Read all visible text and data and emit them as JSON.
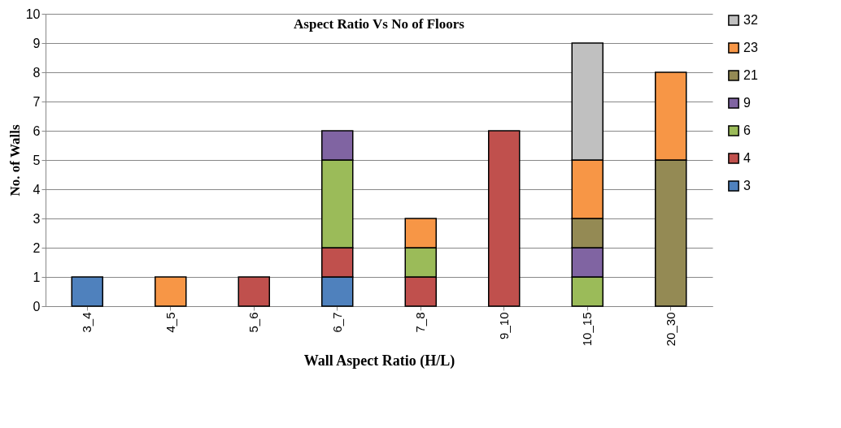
{
  "chart_data": {
    "type": "bar",
    "stacked": true,
    "title": "Aspect Ratio Vs No of Floors",
    "xlabel": "Wall  Aspect Ratio (H/L)",
    "ylabel": "No. of Walls",
    "categories": [
      "3_4",
      "4_5",
      "5_6",
      "6_7",
      "7_8",
      "9_10",
      "10_15",
      "20_30"
    ],
    "ylim": [
      0,
      10
    ],
    "yticks": [
      0,
      1,
      2,
      3,
      4,
      5,
      6,
      7,
      8,
      9,
      10
    ],
    "grid": "y",
    "legend": "right",
    "series": [
      {
        "name": "3",
        "color": "#4f81bd",
        "values": [
          1,
          null,
          null,
          1,
          null,
          null,
          null,
          null
        ]
      },
      {
        "name": "4",
        "color": "#c0504d",
        "values": [
          null,
          null,
          1,
          1,
          1,
          6,
          null,
          null
        ]
      },
      {
        "name": "6",
        "color": "#9bbb59",
        "values": [
          null,
          null,
          null,
          3,
          1,
          null,
          1,
          null
        ]
      },
      {
        "name": "9",
        "color": "#8064a2",
        "values": [
          null,
          null,
          null,
          1,
          null,
          null,
          1,
          null
        ]
      },
      {
        "name": "21",
        "color": "#948a54",
        "values": [
          null,
          null,
          null,
          null,
          null,
          null,
          1,
          5
        ]
      },
      {
        "name": "23",
        "color": "#f79646",
        "values": [
          null,
          1,
          null,
          null,
          1,
          null,
          2,
          3
        ]
      },
      {
        "name": "32",
        "color": "#c0c0c0",
        "values": [
          null,
          null,
          null,
          null,
          null,
          null,
          4,
          null
        ]
      }
    ]
  }
}
